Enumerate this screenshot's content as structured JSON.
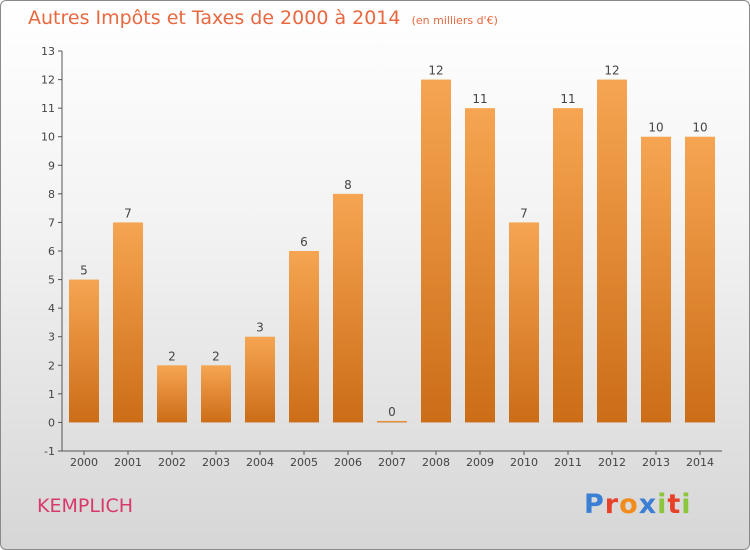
{
  "title": "Autres Impôts et Taxes de 2000 à 2014",
  "subtitle": "(en milliers d'€)",
  "commune": "KEMPLICH",
  "logo": {
    "letters": [
      "P",
      "r",
      "o",
      "x",
      "i",
      "t",
      "i"
    ],
    "colors": [
      "#3b7fd4",
      "#e7412a",
      "#f28c1c",
      "#3b7fd4",
      "#8cc63f",
      "#e7412a",
      "#8cc63f"
    ]
  },
  "colors": {
    "bar_light": "#f6a552",
    "bar_dark": "#cc6d17",
    "axis": "#555555",
    "text": "#444444"
  },
  "chart_data": {
    "type": "bar",
    "categories": [
      "2000",
      "2001",
      "2002",
      "2003",
      "2004",
      "2005",
      "2006",
      "2007",
      "2008",
      "2009",
      "2010",
      "2011",
      "2012",
      "2013",
      "2014"
    ],
    "values": [
      5,
      7,
      2,
      2,
      3,
      6,
      8,
      0,
      12,
      11,
      7,
      11,
      12,
      10,
      10
    ],
    "ylim": [
      -1,
      13
    ],
    "yticks": [
      -1,
      0,
      1,
      2,
      3,
      4,
      5,
      6,
      7,
      8,
      9,
      10,
      11,
      12,
      13
    ],
    "title": "Autres Impôts et Taxes de 2000 à 2014",
    "xlabel": "",
    "ylabel": "",
    "grid": false,
    "data_labels": true
  }
}
